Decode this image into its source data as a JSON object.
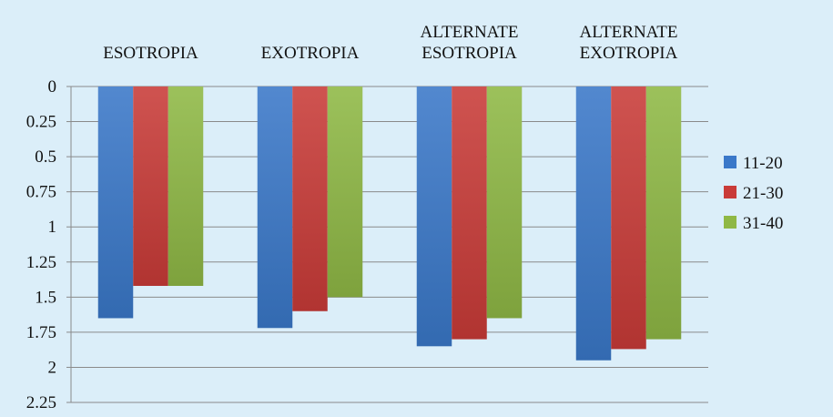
{
  "chart_data": {
    "type": "bar",
    "orientation": "vertical-inverted",
    "categories": [
      [
        "ESOTROPIA"
      ],
      [
        "EXOTROPIA"
      ],
      [
        "ALTERNATE",
        "ESOTROPIA"
      ],
      [
        "ALTERNATE",
        "EXOTROPIA"
      ]
    ],
    "series": [
      {
        "name": "11-20",
        "color": "#3a78c9",
        "values": [
          1.65,
          1.72,
          1.85,
          1.95
        ]
      },
      {
        "name": "21-30",
        "color": "#c93b38",
        "values": [
          1.42,
          1.6,
          1.8,
          1.87
        ]
      },
      {
        "name": "31-40",
        "color": "#8fb845",
        "values": [
          1.42,
          1.5,
          1.65,
          1.8
        ]
      }
    ],
    "y_ticks": [
      "0",
      "0.25",
      "0.5",
      "0.75",
      "1",
      "1.25",
      "1.5",
      "1.75",
      "2",
      "2.25"
    ],
    "ylim": [
      0,
      2.25
    ],
    "y_reversed": true,
    "category_axis_position": "top",
    "grid": true,
    "legend_position": "right",
    "title": "",
    "xlabel": "",
    "ylabel": ""
  }
}
